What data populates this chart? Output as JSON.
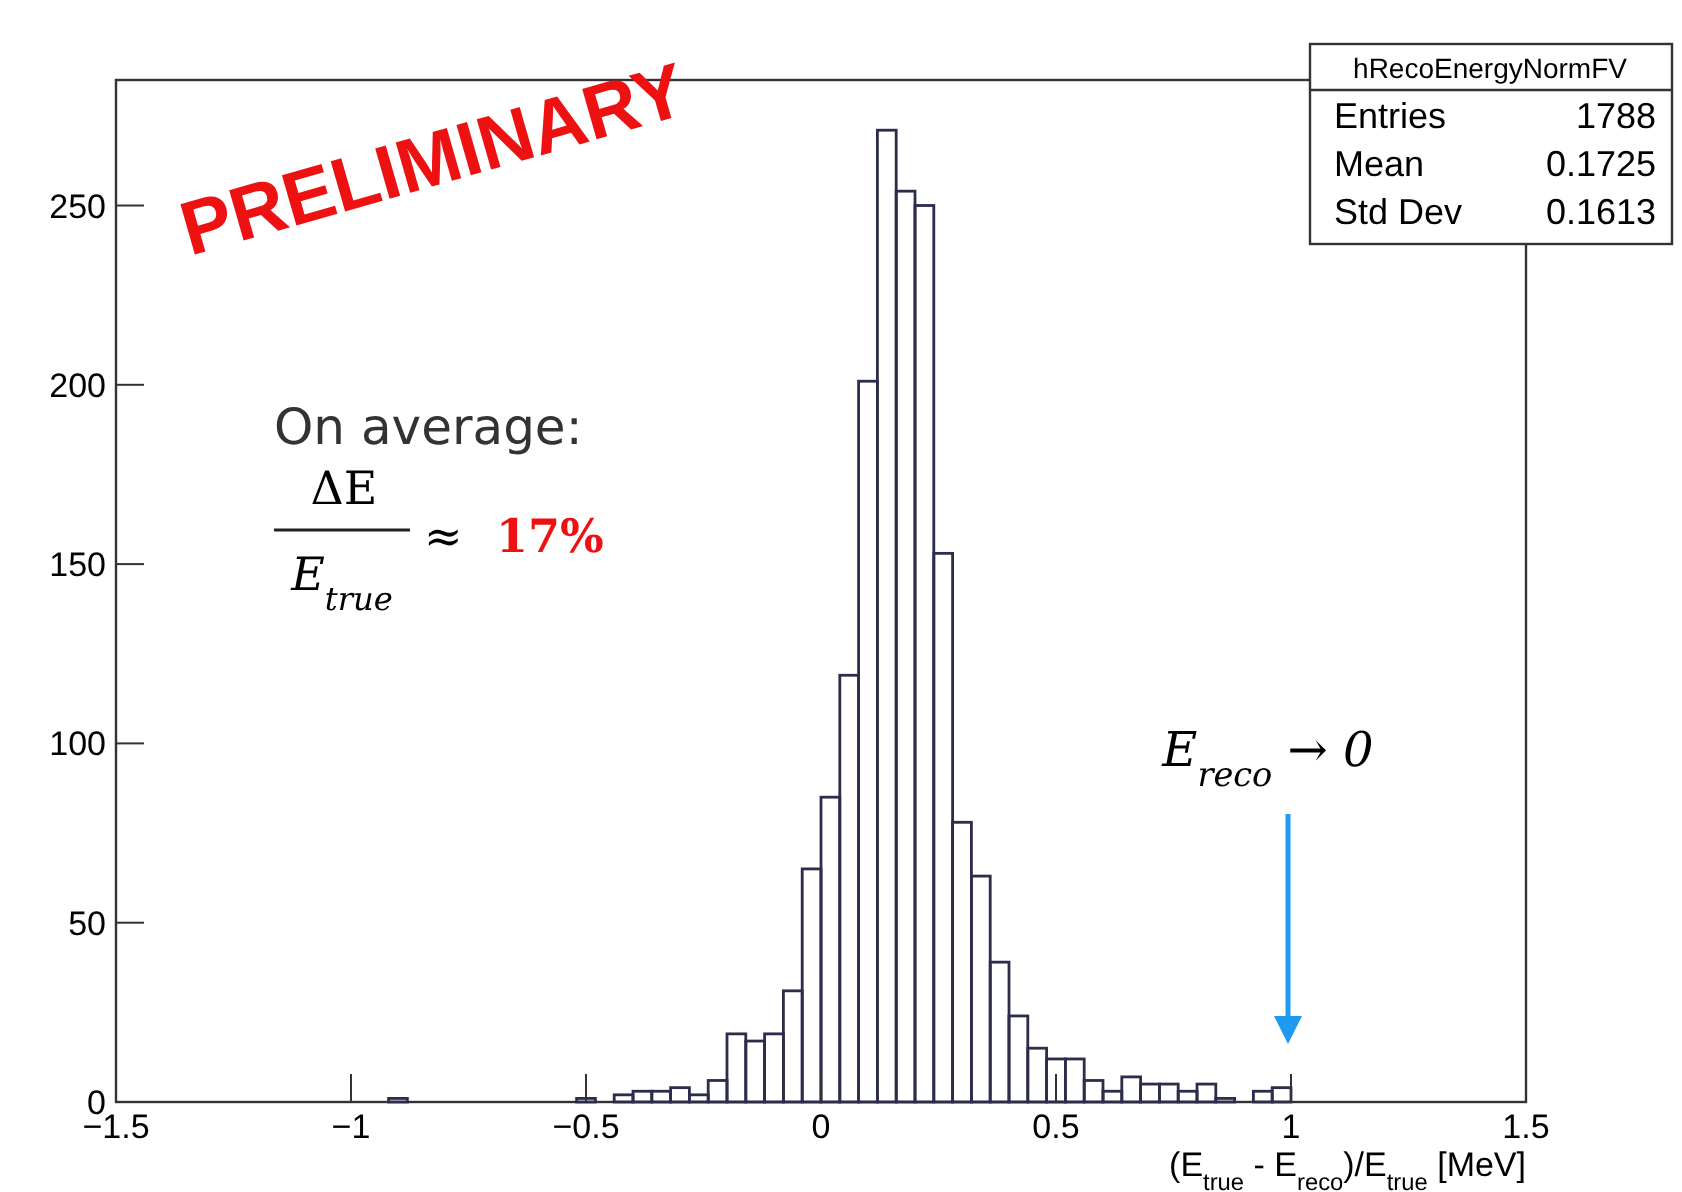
{
  "chart_data": {
    "type": "histogram",
    "xlabel": "(E$_{true}$ - E$_{reco}$)/E$_{true}$ [MeV]",
    "color": "#2b2d4a",
    "bins": [
      -0.92,
      -0.88,
      -0.84,
      -0.8,
      -0.76,
      -0.72,
      -0.68,
      -0.64,
      -0.6,
      -0.56,
      -0.52,
      -0.48,
      -0.44,
      -0.4,
      -0.36,
      -0.32,
      -0.28,
      -0.24,
      -0.2,
      -0.16,
      -0.12,
      -0.08,
      -0.04,
      0,
      0.04,
      0.08,
      0.12,
      0.16,
      0.2,
      0.24,
      0.28,
      0.32,
      0.36,
      0.4,
      0.44,
      0.48,
      0.52,
      0.56,
      0.6,
      0.64,
      0.68,
      0.72,
      0.76,
      0.8,
      0.84,
      0.88,
      0.92,
      0.96,
      1.0
    ],
    "values": [
      1,
      0,
      0,
      0,
      0,
      0,
      0,
      0,
      0,
      0,
      1,
      0,
      2,
      3,
      3,
      4,
      2,
      6,
      19,
      17,
      19,
      31,
      65,
      85,
      119,
      201,
      271,
      254,
      250,
      153,
      78,
      63,
      39,
      24,
      15,
      12,
      12,
      6,
      3,
      7,
      5,
      5,
      3,
      5,
      1,
      0,
      3,
      4
    ],
    "xlim": [
      -1.5,
      1.5
    ],
    "xticks": [
      -1.5,
      -1,
      -0.5,
      0,
      0.5,
      1,
      1.5
    ],
    "ylim": [
      0,
      285
    ],
    "yticks": [
      0,
      50,
      100,
      150,
      200,
      250
    ],
    "grid": false,
    "annotations": [
      "PRELIMINARY",
      "On average:",
      "ΔE",
      "E$_{true}$",
      "≈",
      "17%",
      "hRecoEnergyNormFV",
      "Entries",
      "1788",
      "Mean",
      "0.1725",
      "Std Dev",
      "0.1613",
      "E$_{reco}$ → 0"
    ]
  }
}
